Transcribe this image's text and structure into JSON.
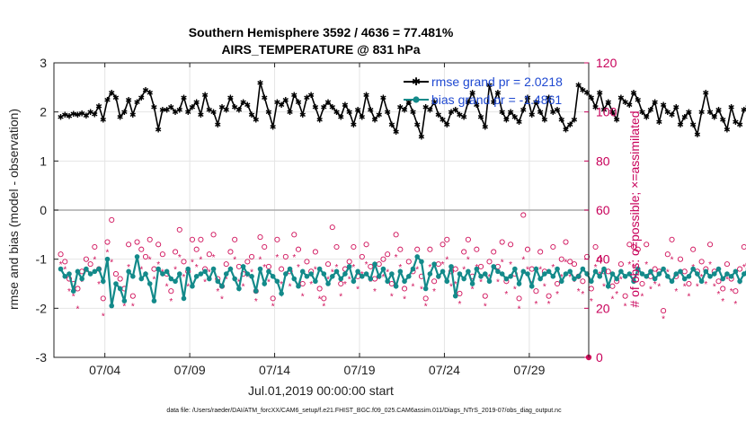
{
  "chart_data": {
    "type": "line",
    "title": "Southern Hemisphere 3592 / 4636 = 77.481%",
    "subtitle": "AIRS_TEMPERATURE @ 831 hPa",
    "xlabel": "Jul.01,2019 00:00:00 start",
    "ylabel": "rmse and bias (model - observation)",
    "y2label": "# of obs: o=possible; ×=assimilated",
    "footnote": "data file: /Users/raeder/DAI/ATM_forcXX/CAM6_setup/f.e21.FHIST_BGC.f09_025.CAM6assim.011/Diags_NTrS_2019-07/obs_diag_output.nc",
    "xlim": [
      0,
      31.5
    ],
    "ylim": [
      -3,
      3
    ],
    "y2lim": [
      0,
      120
    ],
    "x_ticks": [
      3,
      8,
      13,
      18,
      23,
      28
    ],
    "x_tick_labels": [
      "07/04",
      "07/09",
      "07/14",
      "07/19",
      "07/24",
      "07/29"
    ],
    "y_ticks": [
      -3,
      -2,
      -1,
      0,
      1,
      2,
      3
    ],
    "y_tick_labels": [
      "-3",
      "-2",
      "-1",
      "0",
      "1",
      "2",
      "3"
    ],
    "y2_ticks": [
      0,
      20,
      40,
      60,
      80,
      100,
      120
    ],
    "y2_tick_labels": [
      "0",
      "20",
      "40",
      "60",
      "80",
      "100",
      "120"
    ],
    "grid": true,
    "legend_position": "top-right",
    "x_step_days": 0.25,
    "colors": {
      "rmse": "#000000",
      "bias": "#138a8a",
      "obs": "#d0105a",
      "zero_line": "#aaaaaa"
    },
    "series": [
      {
        "name": "rmse grand pr = 2.0218",
        "axis": "left",
        "values": [
          1.9,
          1.95,
          1.92,
          1.97,
          1.95,
          1.98,
          1.93,
          2.0,
          1.96,
          2.12,
          1.85,
          2.25,
          2.4,
          2.3,
          1.9,
          2.0,
          2.25,
          1.95,
          2.2,
          2.3,
          2.45,
          2.4,
          2.1,
          1.65,
          2.05,
          2.05,
          2.1,
          2.0,
          2.05,
          2.3,
          2.0,
          2.1,
          2.2,
          1.95,
          2.35,
          2.05,
          2.0,
          1.75,
          2.1,
          2.05,
          2.3,
          2.1,
          2.05,
          2.2,
          2.15,
          1.95,
          1.85,
          2.6,
          2.3,
          2.0,
          1.7,
          2.2,
          2.15,
          2.25,
          2.0,
          2.35,
          2.2,
          1.95,
          2.3,
          2.35,
          2.1,
          1.85,
          2.1,
          2.2,
          2.1,
          2.0,
          1.9,
          2.15,
          2.0,
          1.75,
          2.05,
          1.9,
          2.35,
          2.05,
          1.85,
          1.95,
          2.3,
          2.0,
          1.75,
          1.6,
          2.1,
          2.05,
          2.2,
          2.0,
          1.75,
          1.5,
          2.1,
          2.05,
          2.2,
          1.95,
          1.85,
          1.75,
          2.0,
          2.05,
          1.95,
          1.9,
          2.2,
          2.4,
          2.15,
          1.9,
          1.7,
          2.55,
          2.2,
          2.4,
          2.0,
          1.85,
          2.0,
          1.9,
          1.8,
          2.05,
          2.3,
          1.95,
          2.2,
          2.0,
          1.85,
          2.3,
          2.0,
          2.05,
          1.85,
          1.65,
          1.75,
          1.85,
          2.55,
          2.45,
          2.4,
          2.3,
          2.1,
          2.4,
          2.05,
          2.2,
          2.0,
          1.85,
          2.3,
          2.2,
          2.15,
          2.4,
          2.25,
          2.0,
          1.9,
          2.05,
          2.2,
          1.8,
          2.15,
          2.0,
          1.95,
          2.1,
          1.75,
          1.9,
          2.0,
          1.75,
          1.55,
          2.0,
          2.4,
          2.0,
          1.9,
          2.05,
          1.85,
          1.65,
          2.1,
          1.8,
          1.75,
          2.05,
          2.1,
          1.85,
          1.95,
          2.0,
          2.2,
          2.5,
          2.3,
          2.15,
          2.05,
          2.1,
          2.0,
          1.95,
          2.05,
          1.9,
          1.8,
          1.6,
          1.85,
          1.75,
          2.2,
          2.0,
          1.95,
          2.05,
          1.85,
          1.65,
          1.9,
          2.0,
          2.1,
          1.9,
          2.3,
          2.0,
          1.85,
          2.05,
          2.05,
          2.0,
          1.5,
          1.52
        ]
      },
      {
        "name": "bias grand pr = -1.4861",
        "axis": "left",
        "values": [
          -1.2,
          -1.35,
          -1.3,
          -1.65,
          -1.25,
          -1.4,
          -1.2,
          -1.3,
          -1.25,
          -1.2,
          -1.45,
          -1.0,
          -1.95,
          -1.5,
          -1.6,
          -1.85,
          -1.25,
          -1.35,
          -0.95,
          -1.4,
          -1.3,
          -1.5,
          -1.85,
          -1.2,
          -1.3,
          -1.25,
          -1.4,
          -1.45,
          -1.3,
          -1.8,
          -1.2,
          -1.55,
          -1.35,
          -1.3,
          -1.25,
          -1.4,
          -1.2,
          -1.45,
          -1.55,
          -1.3,
          -1.2,
          -1.4,
          -1.6,
          -1.15,
          -1.3,
          -1.35,
          -1.65,
          -1.2,
          -1.5,
          -1.25,
          -1.35,
          -1.45,
          -1.7,
          -1.3,
          -1.2,
          -1.4,
          -1.55,
          -1.25,
          -1.35,
          -1.3,
          -1.45,
          -1.2,
          -1.3,
          -1.5,
          -1.35,
          -1.25,
          -1.4,
          -1.3,
          -1.15,
          -1.45,
          -1.25,
          -1.35,
          -1.3,
          -1.4,
          -1.1,
          -1.35,
          -1.2,
          -1.45,
          -1.3,
          -1.55,
          -1.25,
          -1.45,
          -1.35,
          -1.2,
          -0.95,
          -1.05,
          -1.6,
          -1.3,
          -1.1,
          -1.35,
          -1.25,
          -1.45,
          -1.15,
          -1.75,
          -1.3,
          -1.4,
          -1.25,
          -1.5,
          -1.2,
          -1.35,
          -1.3,
          -1.45,
          -1.15,
          -1.25,
          -1.3,
          -1.4,
          -1.35,
          -1.2,
          -1.5,
          -1.25,
          -1.3,
          -1.55,
          -1.2,
          -1.4,
          -1.3,
          -1.25,
          -1.35,
          -1.2,
          -1.45,
          -1.3,
          -1.25,
          -1.4,
          -1.35,
          -1.2,
          -1.3,
          -1.45,
          -1.25,
          -1.35,
          -1.2,
          -1.55,
          -1.3,
          -1.4,
          -1.25,
          -1.35,
          -1.3,
          -1.45,
          -1.2,
          -1.3,
          -1.35,
          -1.25,
          -1.4,
          -1.3,
          -1.2,
          -1.35,
          -1.45,
          -1.3,
          -1.25,
          -1.4,
          -1.35,
          -1.2,
          -1.3,
          -1.45,
          -1.25,
          -1.35,
          -1.3,
          -1.2,
          -1.4,
          -1.3,
          -1.35,
          -1.25,
          -1.45,
          -1.3,
          -1.2,
          -1.35,
          -1.3,
          -1.4,
          -1.25,
          -1.35,
          -1.3,
          -1.2,
          -1.45,
          -1.3,
          -1.25,
          -1.35,
          -1.4,
          -1.3,
          -1.2,
          -1.35,
          -1.3,
          -1.45,
          -1.25,
          -1.3,
          -1.35,
          -1.2,
          -1.4,
          -1.3,
          -1.25,
          -1.35,
          -1.3,
          -1.45,
          -1.2,
          -1.3,
          -1.35,
          -1.25
        ]
      },
      {
        "name": "obs possible",
        "axis": "right",
        "values": [
          42,
          39,
          32,
          30,
          28,
          35,
          40,
          38,
          45,
          36,
          24,
          47,
          56,
          34,
          32,
          28,
          46,
          25,
          47,
          44,
          41,
          48,
          36,
          46,
          42,
          34,
          27,
          43,
          52,
          39,
          35,
          48,
          44,
          48,
          36,
          42,
          50,
          32,
          29,
          38,
          43,
          48,
          37,
          34,
          39,
          41,
          27,
          49,
          45,
          37,
          24,
          48,
          36,
          41,
          35,
          50,
          44,
          30,
          39,
          35,
          43,
          28,
          24,
          38,
          53,
          45,
          30,
          36,
          39,
          45,
          33,
          41,
          46,
          37,
          32,
          38,
          40,
          42,
          30,
          50,
          44,
          28,
          39,
          35,
          44,
          33,
          24,
          44,
          31,
          38,
          46,
          48,
          35,
          36,
          26,
          43,
          48,
          33,
          44,
          37,
          25,
          39,
          43,
          37,
          47,
          31,
          46,
          34,
          24,
          58,
          44,
          36,
          27,
          43,
          35,
          25,
          45,
          30,
          40,
          47,
          39,
          38,
          33,
          31,
          41,
          28,
          45,
          40,
          35,
          35,
          29,
          31,
          38,
          25,
          46,
          45,
          44,
          30,
          46,
          33,
          36,
          35,
          19,
          42,
          48,
          33,
          40,
          35,
          30,
          44,
          35,
          39,
          36,
          46,
          35,
          31,
          28,
          38,
          32,
          27,
          36,
          45,
          38,
          31,
          43,
          33,
          25,
          36,
          45,
          37,
          42,
          24,
          38,
          31,
          41,
          34,
          47,
          37,
          34,
          39,
          49,
          37,
          31,
          38,
          36,
          43,
          34,
          48,
          26,
          42,
          39,
          35,
          32,
          45,
          28,
          38,
          35,
          31
        ]
      },
      {
        "name": "obs assimilated",
        "axis": "right",
        "values": [
          38,
          36,
          27,
          25,
          20,
          31,
          35,
          34,
          40,
          30,
          17,
          43,
          39,
          29,
          28,
          21,
          37,
          21,
          40,
          36,
          34,
          40,
          32,
          38,
          35,
          29,
          23,
          36,
          41,
          33,
          29,
          39,
          37,
          40,
          31,
          35,
          41,
          27,
          24,
          32,
          36,
          40,
          31,
          29,
          33,
          35,
          23,
          40,
          37,
          31,
          21,
          41,
          30,
          34,
          29,
          41,
          37,
          25,
          33,
          30,
          36,
          24,
          21,
          32,
          35,
          37,
          25,
          30,
          32,
          37,
          28,
          34,
          38,
          31,
          27,
          32,
          33,
          35,
          25,
          41,
          37,
          24,
          33,
          29,
          36,
          28,
          21,
          37,
          27,
          32,
          38,
          40,
          29,
          30,
          22,
          36,
          40,
          28,
          37,
          31,
          21,
          33,
          36,
          31,
          39,
          26,
          38,
          28,
          20,
          40,
          36,
          30,
          22,
          36,
          29,
          22,
          37,
          26,
          33,
          39,
          33,
          31,
          27,
          26,
          34,
          23,
          37,
          34,
          29,
          29,
          24,
          26,
          32,
          21,
          38,
          37,
          36,
          25,
          38,
          28,
          30,
          29,
          16,
          35,
          40,
          27,
          34,
          29,
          25,
          37,
          29,
          33,
          30,
          38,
          29,
          26,
          23,
          32,
          27,
          22,
          30,
          37,
          32,
          26,
          36,
          28,
          21,
          30,
          37,
          31,
          35,
          20,
          32,
          26,
          34,
          28,
          39,
          31,
          28,
          33,
          41,
          31,
          26,
          32,
          30,
          36,
          28,
          40,
          22,
          35,
          33,
          29,
          27,
          37,
          23,
          32,
          29,
          26
        ]
      }
    ],
    "endpoint_marker": {
      "x": 31.5,
      "y2": 0
    }
  }
}
